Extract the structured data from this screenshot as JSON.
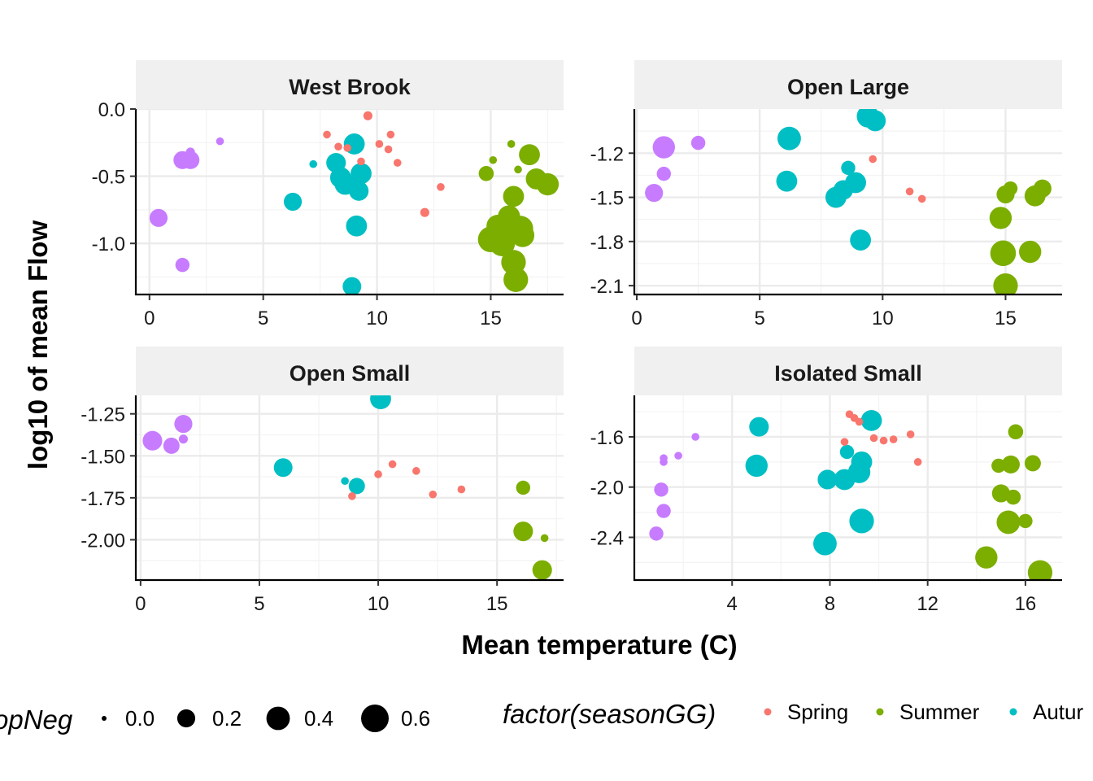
{
  "chart_data": {
    "type": "scatter",
    "xlabel": "Mean temperature (C)",
    "ylabel": "log10 of mean Flow",
    "grid": true,
    "legend_position": "bottom",
    "colors": {
      "Spring": "#F8766D",
      "Summer": "#7CAE00",
      "Autumn": "#00BFC4",
      "Winter": "#C77CFF"
    },
    "size_legend": {
      "title": "opNeg",
      "entries": [
        {
          "label": "0.0",
          "value": 0.0
        },
        {
          "label": "0.2",
          "value": 0.2
        },
        {
          "label": "0.4",
          "value": 0.4
        },
        {
          "label": "0.6",
          "value": 0.6
        }
      ]
    },
    "color_legend": {
      "title": "factor(seasonGG)",
      "entries": [
        {
          "label": "Spring",
          "series": "Spring"
        },
        {
          "label": "Summer",
          "series": "Summer"
        },
        {
          "label": "Autur",
          "series": "Autumn"
        }
      ]
    },
    "panels": [
      {
        "title": "West Brook",
        "xlim": [
          -0.6,
          18.2
        ],
        "ylim": [
          -1.38,
          0.0
        ],
        "xticks": [
          0,
          5,
          10,
          15
        ],
        "xtick_labels": [
          "0",
          "5",
          "10",
          "15"
        ],
        "yticks": [
          0.0,
          -0.5,
          -1.0
        ],
        "ytick_labels": [
          "0.0",
          "-0.5",
          "-1.0"
        ],
        "points": [
          {
            "s": "Winter",
            "x": 0.4,
            "y": -0.81,
            "z": 0.2
          },
          {
            "s": "Winter",
            "x": 1.45,
            "y": -1.16,
            "z": 0.1
          },
          {
            "s": "Winter",
            "x": 1.45,
            "y": -0.38,
            "z": 0.2
          },
          {
            "s": "Winter",
            "x": 1.8,
            "y": -0.38,
            "z": 0.2
          },
          {
            "s": "Winter",
            "x": 1.8,
            "y": -0.32,
            "z": 0.02
          },
          {
            "s": "Winter",
            "x": 3.1,
            "y": -0.24,
            "z": 0.01
          },
          {
            "s": "Autumn",
            "x": 6.3,
            "y": -0.69,
            "z": 0.2
          },
          {
            "s": "Autumn",
            "x": 7.2,
            "y": -0.41,
            "z": 0.01
          },
          {
            "s": "Autumn",
            "x": 8.2,
            "y": -0.4,
            "z": 0.25
          },
          {
            "s": "Autumn",
            "x": 8.4,
            "y": -0.51,
            "z": 0.3
          },
          {
            "s": "Autumn",
            "x": 8.6,
            "y": -0.56,
            "z": 0.3
          },
          {
            "s": "Autumn",
            "x": 8.9,
            "y": -1.32,
            "z": 0.22
          },
          {
            "s": "Autumn",
            "x": 9.0,
            "y": -0.26,
            "z": 0.3
          },
          {
            "s": "Autumn",
            "x": 9.1,
            "y": -0.87,
            "z": 0.3
          },
          {
            "s": "Autumn",
            "x": 9.2,
            "y": -0.61,
            "z": 0.25
          },
          {
            "s": "Autumn",
            "x": 9.3,
            "y": -0.48,
            "z": 0.3
          },
          {
            "s": "Spring",
            "x": 7.8,
            "y": -0.19,
            "z": 0.01
          },
          {
            "s": "Spring",
            "x": 8.3,
            "y": -0.28,
            "z": 0.01
          },
          {
            "s": "Spring",
            "x": 8.7,
            "y": -0.29,
            "z": 0.01
          },
          {
            "s": "Spring",
            "x": 9.3,
            "y": -0.39,
            "z": 0.01
          },
          {
            "s": "Spring",
            "x": 9.6,
            "y": -0.05,
            "z": 0.02
          },
          {
            "s": "Spring",
            "x": 10.1,
            "y": -0.26,
            "z": 0.01
          },
          {
            "s": "Spring",
            "x": 10.5,
            "y": -0.3,
            "z": 0.01
          },
          {
            "s": "Spring",
            "x": 10.6,
            "y": -0.19,
            "z": 0.01
          },
          {
            "s": "Spring",
            "x": 10.9,
            "y": -0.4,
            "z": 0.01
          },
          {
            "s": "Spring",
            "x": 12.1,
            "y": -0.77,
            "z": 0.02
          },
          {
            "s": "Spring",
            "x": 12.8,
            "y": -0.58,
            "z": 0.01
          },
          {
            "s": "Summer",
            "x": 14.8,
            "y": -0.48,
            "z": 0.12
          },
          {
            "s": "Summer",
            "x": 15.0,
            "y": -0.97,
            "z": 0.5
          },
          {
            "s": "Summer",
            "x": 15.1,
            "y": -0.38,
            "z": 0.01
          },
          {
            "s": "Summer",
            "x": 15.3,
            "y": -0.87,
            "z": 0.35
          },
          {
            "s": "Summer",
            "x": 15.5,
            "y": -1.0,
            "z": 0.5
          },
          {
            "s": "Summer",
            "x": 15.7,
            "y": -0.92,
            "z": 0.6
          },
          {
            "s": "Summer",
            "x": 15.8,
            "y": -0.8,
            "z": 0.35
          },
          {
            "s": "Summer",
            "x": 15.9,
            "y": -0.26,
            "z": 0.01
          },
          {
            "s": "Summer",
            "x": 16.0,
            "y": -0.65,
            "z": 0.3
          },
          {
            "s": "Summer",
            "x": 16.0,
            "y": -1.14,
            "z": 0.45
          },
          {
            "s": "Summer",
            "x": 16.1,
            "y": -1.27,
            "z": 0.45
          },
          {
            "s": "Summer",
            "x": 16.2,
            "y": -0.45,
            "z": 0.01
          },
          {
            "s": "Summer",
            "x": 16.3,
            "y": -0.89,
            "z": 0.5
          },
          {
            "s": "Summer",
            "x": 16.4,
            "y": -0.94,
            "z": 0.4
          },
          {
            "s": "Summer",
            "x": 16.7,
            "y": -0.34,
            "z": 0.3
          },
          {
            "s": "Summer",
            "x": 17.0,
            "y": -0.52,
            "z": 0.3
          },
          {
            "s": "Summer",
            "x": 17.5,
            "y": -0.56,
            "z": 0.35
          }
        ]
      },
      {
        "title": "Open Large",
        "xlim": [
          -0.1,
          17.3
        ],
        "ylim": [
          -2.16,
          -0.9
        ],
        "xticks": [
          0,
          5,
          10,
          15
        ],
        "xtick_labels": [
          "0",
          "5",
          "10",
          "15"
        ],
        "yticks": [
          -1.2,
          -1.5,
          -1.8,
          -2.1
        ],
        "ytick_labels": [
          "-1.2",
          "-1.5",
          "-1.8",
          "-2.1"
        ],
        "points": [
          {
            "s": "Winter",
            "x": 0.7,
            "y": -1.47,
            "z": 0.2
          },
          {
            "s": "Winter",
            "x": 1.1,
            "y": -1.34,
            "z": 0.1
          },
          {
            "s": "Winter",
            "x": 1.1,
            "y": -1.16,
            "z": 0.35
          },
          {
            "s": "Winter",
            "x": 2.5,
            "y": -1.13,
            "z": 0.1
          },
          {
            "s": "Autumn",
            "x": 6.1,
            "y": -1.39,
            "z": 0.3
          },
          {
            "s": "Autumn",
            "x": 6.2,
            "y": -1.1,
            "z": 0.4
          },
          {
            "s": "Autumn",
            "x": 8.1,
            "y": -1.5,
            "z": 0.3
          },
          {
            "s": "Autumn",
            "x": 8.4,
            "y": -1.45,
            "z": 0.25
          },
          {
            "s": "Autumn",
            "x": 8.6,
            "y": -1.3,
            "z": 0.1
          },
          {
            "s": "Autumn",
            "x": 8.9,
            "y": -1.4,
            "z": 0.3
          },
          {
            "s": "Autumn",
            "x": 9.1,
            "y": -1.79,
            "z": 0.3
          },
          {
            "s": "Autumn",
            "x": 9.4,
            "y": -0.95,
            "z": 0.35
          },
          {
            "s": "Autumn",
            "x": 9.7,
            "y": -0.98,
            "z": 0.3
          },
          {
            "s": "Spring",
            "x": 9.6,
            "y": -1.24,
            "z": 0.01
          },
          {
            "s": "Spring",
            "x": 11.1,
            "y": -1.46,
            "z": 0.01
          },
          {
            "s": "Spring",
            "x": 11.6,
            "y": -1.51,
            "z": 0.01
          },
          {
            "s": "Summer",
            "x": 14.8,
            "y": -1.64,
            "z": 0.35
          },
          {
            "s": "Summer",
            "x": 14.9,
            "y": -1.88,
            "z": 0.5
          },
          {
            "s": "Summer",
            "x": 15.0,
            "y": -2.1,
            "z": 0.45
          },
          {
            "s": "Summer",
            "x": 15.0,
            "y": -1.48,
            "z": 0.2
          },
          {
            "s": "Summer",
            "x": 15.2,
            "y": -1.44,
            "z": 0.1
          },
          {
            "s": "Summer",
            "x": 16.0,
            "y": -1.87,
            "z": 0.35
          },
          {
            "s": "Summer",
            "x": 16.2,
            "y": -1.49,
            "z": 0.3
          },
          {
            "s": "Summer",
            "x": 16.5,
            "y": -1.44,
            "z": 0.2
          }
        ]
      },
      {
        "title": "Open Small",
        "xlim": [
          -0.2,
          17.8
        ],
        "ylim": [
          -2.24,
          -1.14
        ],
        "xticks": [
          0,
          5,
          10,
          15
        ],
        "xtick_labels": [
          "0",
          "5",
          "10",
          "15"
        ],
        "yticks": [
          -1.25,
          -1.5,
          -1.75,
          -2.0
        ],
        "ytick_labels": [
          "-1.25",
          "-1.50",
          "-1.75",
          "-2.00"
        ],
        "points": [
          {
            "s": "Winter",
            "x": 0.5,
            "y": -1.41,
            "z": 0.25
          },
          {
            "s": "Winter",
            "x": 1.3,
            "y": -1.44,
            "z": 0.15
          },
          {
            "s": "Winter",
            "x": 1.8,
            "y": -1.31,
            "z": 0.2
          },
          {
            "s": "Winter",
            "x": 1.8,
            "y": -1.4,
            "z": 0.02
          },
          {
            "s": "Autumn",
            "x": 6.0,
            "y": -1.57,
            "z": 0.22
          },
          {
            "s": "Autumn",
            "x": 8.6,
            "y": -1.65,
            "z": 0.01
          },
          {
            "s": "Autumn",
            "x": 9.1,
            "y": -1.68,
            "z": 0.15
          },
          {
            "s": "Autumn",
            "x": 10.1,
            "y": -1.16,
            "z": 0.3
          },
          {
            "s": "Spring",
            "x": 8.9,
            "y": -1.74,
            "z": 0.01
          },
          {
            "s": "Spring",
            "x": 10.0,
            "y": -1.61,
            "z": 0.01
          },
          {
            "s": "Spring",
            "x": 10.6,
            "y": -1.55,
            "z": 0.01
          },
          {
            "s": "Spring",
            "x": 11.6,
            "y": -1.59,
            "z": 0.01
          },
          {
            "s": "Spring",
            "x": 12.3,
            "y": -1.73,
            "z": 0.01
          },
          {
            "s": "Spring",
            "x": 13.5,
            "y": -1.7,
            "z": 0.01
          },
          {
            "s": "Summer",
            "x": 16.1,
            "y": -1.69,
            "z": 0.1
          },
          {
            "s": "Summer",
            "x": 16.1,
            "y": -1.95,
            "z": 0.25
          },
          {
            "s": "Summer",
            "x": 17.0,
            "y": -1.99,
            "z": 0.01
          },
          {
            "s": "Summer",
            "x": 16.9,
            "y": -2.18,
            "z": 0.25
          }
        ]
      },
      {
        "title": "Isolated Small",
        "xlim": [
          0.0,
          17.5
        ],
        "ylim": [
          -2.74,
          -1.27
        ],
        "xticks": [
          4,
          8,
          12,
          16
        ],
        "xtick_labels": [
          "4",
          "8",
          "12",
          "16"
        ],
        "yticks": [
          -1.6,
          -2.0,
          -2.4
        ],
        "ytick_labels": [
          "-1.6",
          "-2.0",
          "-2.4"
        ],
        "points": [
          {
            "s": "Winter",
            "x": 0.9,
            "y": -2.37,
            "z": 0.1
          },
          {
            "s": "Winter",
            "x": 1.1,
            "y": -2.02,
            "z": 0.1
          },
          {
            "s": "Winter",
            "x": 1.2,
            "y": -2.19,
            "z": 0.1
          },
          {
            "s": "Winter",
            "x": 1.2,
            "y": -1.77,
            "z": 0.01
          },
          {
            "s": "Winter",
            "x": 1.2,
            "y": -1.8,
            "z": 0.01
          },
          {
            "s": "Winter",
            "x": 1.8,
            "y": -1.75,
            "z": 0.01
          },
          {
            "s": "Winter",
            "x": 2.5,
            "y": -1.6,
            "z": 0.01
          },
          {
            "s": "Autumn",
            "x": 5.0,
            "y": -1.83,
            "z": 0.35
          },
          {
            "s": "Autumn",
            "x": 5.1,
            "y": -1.52,
            "z": 0.25
          },
          {
            "s": "Autumn",
            "x": 7.8,
            "y": -2.45,
            "z": 0.4
          },
          {
            "s": "Autumn",
            "x": 7.9,
            "y": -1.94,
            "z": 0.25
          },
          {
            "s": "Autumn",
            "x": 8.6,
            "y": -1.94,
            "z": 0.3
          },
          {
            "s": "Autumn",
            "x": 8.7,
            "y": -1.72,
            "z": 0.1
          },
          {
            "s": "Autumn",
            "x": 9.2,
            "y": -1.88,
            "z": 0.35
          },
          {
            "s": "Autumn",
            "x": 9.3,
            "y": -1.8,
            "z": 0.3
          },
          {
            "s": "Autumn",
            "x": 9.3,
            "y": -2.27,
            "z": 0.45
          },
          {
            "s": "Autumn",
            "x": 9.7,
            "y": -1.47,
            "z": 0.3
          },
          {
            "s": "Spring",
            "x": 8.6,
            "y": -1.64,
            "z": 0.01
          },
          {
            "s": "Spring",
            "x": 8.8,
            "y": -1.42,
            "z": 0.01
          },
          {
            "s": "Spring",
            "x": 9.0,
            "y": -1.45,
            "z": 0.01
          },
          {
            "s": "Spring",
            "x": 9.2,
            "y": -1.48,
            "z": 0.01
          },
          {
            "s": "Spring",
            "x": 9.8,
            "y": -1.61,
            "z": 0.01
          },
          {
            "s": "Spring",
            "x": 10.2,
            "y": -1.63,
            "z": 0.01
          },
          {
            "s": "Spring",
            "x": 10.6,
            "y": -1.62,
            "z": 0.01
          },
          {
            "s": "Spring",
            "x": 11.3,
            "y": -1.58,
            "z": 0.01
          },
          {
            "s": "Spring",
            "x": 11.6,
            "y": -1.8,
            "z": 0.01
          },
          {
            "s": "Summer",
            "x": 14.4,
            "y": -2.56,
            "z": 0.35
          },
          {
            "s": "Summer",
            "x": 14.9,
            "y": -1.83,
            "z": 0.1
          },
          {
            "s": "Summer",
            "x": 15.0,
            "y": -2.05,
            "z": 0.2
          },
          {
            "s": "Summer",
            "x": 15.3,
            "y": -2.28,
            "z": 0.4
          },
          {
            "s": "Summer",
            "x": 15.4,
            "y": -1.82,
            "z": 0.2
          },
          {
            "s": "Summer",
            "x": 15.5,
            "y": -2.08,
            "z": 0.12
          },
          {
            "s": "Summer",
            "x": 15.6,
            "y": -1.56,
            "z": 0.12
          },
          {
            "s": "Summer",
            "x": 16.0,
            "y": -2.27,
            "z": 0.1
          },
          {
            "s": "Summer",
            "x": 16.3,
            "y": -1.81,
            "z": 0.15
          },
          {
            "s": "Summer",
            "x": 16.6,
            "y": -2.68,
            "z": 0.45
          }
        ]
      }
    ]
  }
}
